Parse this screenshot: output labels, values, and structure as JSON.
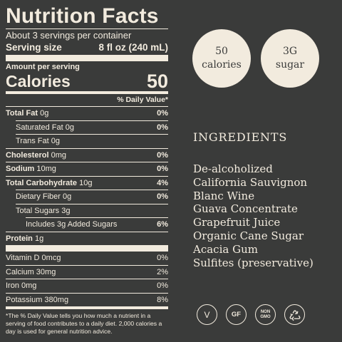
{
  "nutrition": {
    "title": "Nutrition Facts",
    "servings_per_container": "About 3 servings per container",
    "serving_size_label": "Serving size",
    "serving_size_value": "8 fl oz (240 mL)",
    "amount_per_serving": "Amount per serving",
    "calories_label": "Calories",
    "calories_value": "50",
    "daily_value_header": "% Daily Value*",
    "rows": [
      {
        "name": "Total Fat",
        "amount": "0g",
        "pct": "0%"
      },
      {
        "name": "Saturated Fat",
        "amount": "0g",
        "pct": "0%"
      },
      {
        "name": "Trans Fat",
        "amount": "0g",
        "pct": ""
      },
      {
        "name": "Cholesterol",
        "amount": "0mg",
        "pct": "0%"
      },
      {
        "name": "Sodium",
        "amount": "10mg",
        "pct": "0%"
      },
      {
        "name": "Total Carbohydrate",
        "amount": "10g",
        "pct": "4%"
      },
      {
        "name": "Dietary Fiber",
        "amount": "0g",
        "pct": "0%"
      },
      {
        "name": "Total Sugars",
        "amount": "3g",
        "pct": ""
      },
      {
        "name": "Includes 3g Added Sugars",
        "amount": "",
        "pct": "6%"
      },
      {
        "name": "Protein",
        "amount": "1g",
        "pct": ""
      }
    ],
    "vitamins": [
      {
        "name": "Vitamin D",
        "amount": "0mcg",
        "pct": "0%"
      },
      {
        "name": "Calcium",
        "amount": "30mg",
        "pct": "2%"
      },
      {
        "name": "Iron",
        "amount": "0mg",
        "pct": "0%"
      },
      {
        "name": "Potassium",
        "amount": "380mg",
        "pct": "8%"
      }
    ],
    "footnote": "*The % Daily Value tells you how much a nutrient in a serving of food contributes to a daily diet. 2,000 calories a day is used for general nutrition advice."
  },
  "badges": {
    "calories": {
      "line1": "50",
      "line2": "calories"
    },
    "sugar": {
      "line1": "3G",
      "line2": "sugar"
    }
  },
  "ingredients": {
    "title": "INGREDIENTS",
    "items": [
      "De-alcoholized",
      "California Sauvignon",
      "Blanc Wine",
      "Guava Concentrate",
      "Grapefruit Juice",
      "Organic Cane Sugar",
      "Acacia Gum",
      "Sulfites (preservative)"
    ]
  },
  "icons": {
    "vegan": "V",
    "gluten_free": "GF",
    "non_gmo_line1": "NON",
    "non_gmo_line2": "GMO",
    "recycle_icon": "recycle-icon"
  },
  "colors": {
    "background": "#3a3b3a",
    "foreground": "#f2ebde"
  }
}
